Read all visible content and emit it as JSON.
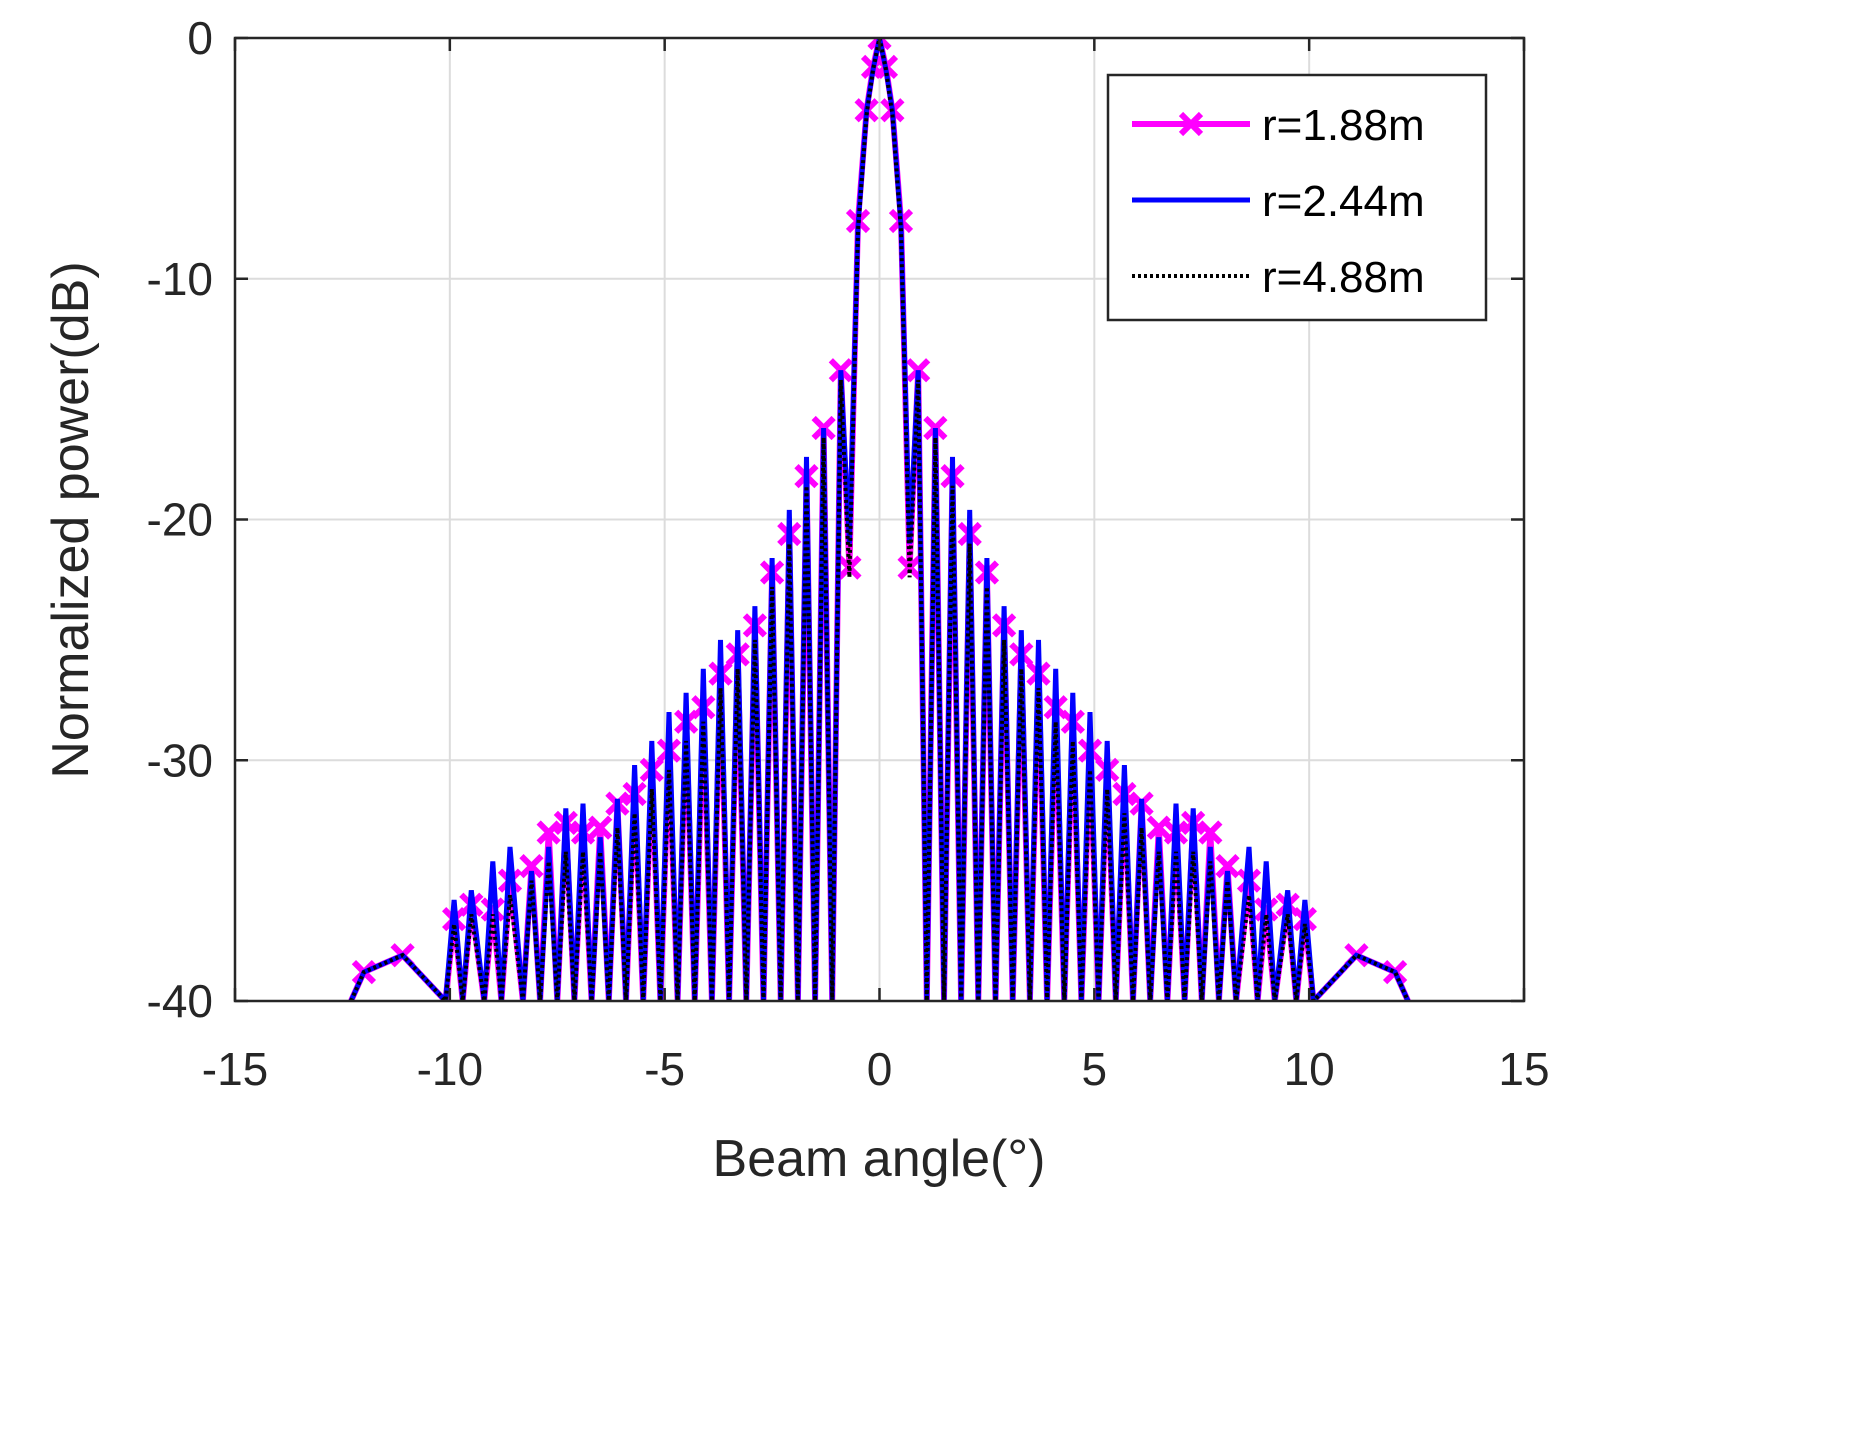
{
  "chart_data": {
    "type": "line",
    "title": "",
    "xlabel": "Beam angle(°)",
    "ylabel": "Normalized power(dB)",
    "xlim": [
      -15,
      15
    ],
    "ylim": [
      -40,
      0
    ],
    "xticks": [
      -15,
      -10,
      -5,
      0,
      5,
      10,
      15
    ],
    "yticks": [
      0,
      -10,
      -20,
      -30,
      -40
    ],
    "xtick_labels": [
      "-15",
      "-10",
      "-5",
      "0",
      "5",
      "10",
      "15"
    ],
    "ytick_labels": [
      "0",
      "-10",
      "-20",
      "-30",
      "-40"
    ],
    "grid": true,
    "legend_position": "top-right",
    "series": [
      {
        "name": "r=1.88m",
        "color": "#ff00ff",
        "line_style": "solid",
        "marker": "x",
        "x": [
          -12.3,
          -12.0,
          -11.1,
          -10.1,
          -9.9,
          -9.7,
          -9.5,
          -9.2,
          -9.0,
          -8.8,
          -8.6,
          -8.3,
          -8.1,
          -7.9,
          -7.7,
          -7.5,
          -7.3,
          -7.1,
          -6.9,
          -6.7,
          -6.5,
          -6.3,
          -6.1,
          -5.9,
          -5.7,
          -5.5,
          -5.3,
          -5.1,
          -4.9,
          -4.7,
          -4.5,
          -4.3,
          -4.1,
          -3.9,
          -3.7,
          -3.5,
          -3.3,
          -3.1,
          -2.9,
          -2.7,
          -2.5,
          -2.3,
          -2.1,
          -1.9,
          -1.7,
          -1.5,
          -1.3,
          -1.1,
          -0.9,
          -0.7,
          -0.5,
          -0.3,
          -0.15,
          0.0,
          0.15,
          0.3,
          0.5,
          0.7,
          0.9,
          1.1,
          1.3,
          1.5,
          1.7,
          1.9,
          2.1,
          2.3,
          2.5,
          2.7,
          2.9,
          3.1,
          3.3,
          3.5,
          3.7,
          3.9,
          4.1,
          4.3,
          4.5,
          4.7,
          4.9,
          5.1,
          5.3,
          5.5,
          5.7,
          5.9,
          6.1,
          6.3,
          6.5,
          6.7,
          6.9,
          7.1,
          7.3,
          7.5,
          7.7,
          7.9,
          8.1,
          8.3,
          8.6,
          8.8,
          9.0,
          9.2,
          9.5,
          9.7,
          9.9,
          10.1,
          11.1,
          12.0,
          12.3
        ],
        "y": [
          -40,
          -38.8,
          -38.1,
          -40,
          -36.6,
          -40,
          -36.0,
          -40,
          -36.2,
          -40,
          -35.0,
          -40,
          -34.4,
          -40,
          -33.0,
          -40,
          -32.6,
          -40,
          -33.0,
          -40,
          -32.8,
          -40,
          -31.8,
          -40,
          -31.4,
          -40,
          -30.4,
          -40,
          -29.6,
          -40,
          -28.4,
          -40,
          -27.8,
          -40,
          -26.4,
          -40,
          -25.6,
          -40,
          -24.4,
          -40,
          -22.2,
          -40,
          -20.6,
          -40,
          -18.2,
          -40,
          -16.2,
          -40,
          -13.8,
          -22.0,
          -7.6,
          -3.0,
          -1.2,
          0,
          -1.2,
          -3.0,
          -7.6,
          -22.0,
          -13.8,
          -40,
          -16.2,
          -40,
          -18.2,
          -40,
          -20.6,
          -40,
          -22.2,
          -40,
          -24.4,
          -40,
          -25.6,
          -40,
          -26.4,
          -40,
          -27.8,
          -40,
          -28.4,
          -40,
          -29.6,
          -40,
          -30.4,
          -40,
          -31.4,
          -40,
          -31.8,
          -40,
          -32.8,
          -40,
          -33.0,
          -40,
          -32.6,
          -40,
          -33.0,
          -40,
          -34.4,
          -40,
          -35.0,
          -40,
          -36.2,
          -40,
          -36.0,
          -40,
          -36.6,
          -40,
          -38.1,
          -38.8,
          -40
        ]
      },
      {
        "name": "r=2.44m",
        "color": "#0000ff",
        "line_style": "solid",
        "marker": "none",
        "x": [
          -12.3,
          -12.0,
          -11.1,
          -10.1,
          -9.9,
          -9.7,
          -9.5,
          -9.2,
          -9.0,
          -8.8,
          -8.6,
          -8.3,
          -8.1,
          -7.9,
          -7.7,
          -7.5,
          -7.3,
          -7.1,
          -6.9,
          -6.7,
          -6.5,
          -6.3,
          -6.1,
          -5.9,
          -5.7,
          -5.5,
          -5.3,
          -5.1,
          -4.9,
          -4.7,
          -4.5,
          -4.3,
          -4.1,
          -3.9,
          -3.7,
          -3.5,
          -3.3,
          -3.1,
          -2.9,
          -2.7,
          -2.5,
          -2.3,
          -2.1,
          -1.9,
          -1.7,
          -1.5,
          -1.3,
          -1.1,
          -0.9,
          -0.7,
          -0.5,
          -0.3,
          -0.15,
          0.0,
          0.15,
          0.3,
          0.5,
          0.7,
          0.9,
          1.1,
          1.3,
          1.5,
          1.7,
          1.9,
          2.1,
          2.3,
          2.5,
          2.7,
          2.9,
          3.1,
          3.3,
          3.5,
          3.7,
          3.9,
          4.1,
          4.3,
          4.5,
          4.7,
          4.9,
          5.1,
          5.3,
          5.5,
          5.7,
          5.9,
          6.1,
          6.3,
          6.5,
          6.7,
          6.9,
          7.1,
          7.3,
          7.5,
          7.7,
          7.9,
          8.1,
          8.3,
          8.6,
          8.8,
          9.0,
          9.2,
          9.5,
          9.7,
          9.9,
          10.1,
          11.1,
          12.0,
          12.3
        ],
        "y": [
          -40,
          -38.8,
          -38.1,
          -40,
          -35.8,
          -40,
          -35.4,
          -40,
          -34.2,
          -40,
          -33.6,
          -40,
          -34.6,
          -40,
          -33.6,
          -40,
          -32.0,
          -40,
          -31.8,
          -40,
          -33.2,
          -40,
          -31.6,
          -40,
          -30.2,
          -40,
          -29.2,
          -40,
          -28.0,
          -40,
          -27.2,
          -40,
          -26.2,
          -40,
          -25.0,
          -40,
          -24.6,
          -40,
          -23.6,
          -40,
          -21.6,
          -40,
          -19.6,
          -40,
          -17.4,
          -40,
          -16.2,
          -40,
          -13.8,
          -21.0,
          -7.8,
          -3.0,
          -1.3,
          0,
          -1.3,
          -3.0,
          -7.8,
          -21.0,
          -13.8,
          -40,
          -16.2,
          -40,
          -17.4,
          -40,
          -19.6,
          -40,
          -21.6,
          -40,
          -23.6,
          -40,
          -24.6,
          -40,
          -25.0,
          -40,
          -26.2,
          -40,
          -27.2,
          -40,
          -28.0,
          -40,
          -29.2,
          -40,
          -30.2,
          -40,
          -31.6,
          -40,
          -33.2,
          -40,
          -31.8,
          -40,
          -32.0,
          -40,
          -33.6,
          -40,
          -34.6,
          -40,
          -33.6,
          -40,
          -34.2,
          -40,
          -35.4,
          -40,
          -35.8,
          -40,
          -38.1,
          -38.8,
          -40
        ]
      },
      {
        "name": "r=4.88m",
        "color": "#000000",
        "line_style": "dotted",
        "marker": "none",
        "x": [
          -12.3,
          -12.0,
          -11.1,
          -10.1,
          -9.9,
          -9.7,
          -9.5,
          -9.2,
          -9.0,
          -8.8,
          -8.6,
          -8.3,
          -8.1,
          -7.9,
          -7.7,
          -7.5,
          -7.3,
          -7.1,
          -6.9,
          -6.7,
          -6.5,
          -6.3,
          -6.1,
          -5.9,
          -5.7,
          -5.5,
          -5.3,
          -5.1,
          -4.9,
          -4.7,
          -4.5,
          -4.3,
          -4.1,
          -3.9,
          -3.7,
          -3.5,
          -3.3,
          -3.1,
          -2.9,
          -2.7,
          -2.5,
          -2.3,
          -2.1,
          -1.9,
          -1.7,
          -1.5,
          -1.3,
          -1.1,
          -0.9,
          -0.7,
          -0.5,
          -0.3,
          -0.15,
          0.0,
          0.15,
          0.3,
          0.5,
          0.7,
          0.9,
          1.1,
          1.3,
          1.5,
          1.7,
          1.9,
          2.1,
          2.3,
          2.5,
          2.7,
          2.9,
          3.1,
          3.3,
          3.5,
          3.7,
          3.9,
          4.1,
          4.3,
          4.5,
          4.7,
          4.9,
          5.1,
          5.3,
          5.5,
          5.7,
          5.9,
          6.1,
          6.3,
          6.5,
          6.7,
          6.9,
          7.1,
          7.3,
          7.5,
          7.7,
          7.9,
          8.1,
          8.3,
          8.6,
          8.8,
          9.0,
          9.2,
          9.5,
          9.7,
          9.9,
          10.1,
          11.1,
          12.0,
          12.3
        ],
        "y": [
          -40,
          -38.8,
          -38.1,
          -40,
          -36.8,
          -40,
          -36.4,
          -40,
          -36.4,
          -40,
          -35.6,
          -40,
          -35.0,
          -40,
          -34.2,
          -40,
          -33.8,
          -40,
          -33.8,
          -40,
          -33.8,
          -40,
          -32.8,
          -40,
          -32.2,
          -40,
          -31.2,
          -40,
          -30.4,
          -40,
          -29.2,
          -40,
          -28.4,
          -40,
          -27.0,
          -40,
          -26.2,
          -40,
          -25.0,
          -40,
          -22.8,
          -40,
          -21.0,
          -40,
          -18.6,
          -40,
          -16.6,
          -40,
          -14.2,
          -22.4,
          -8.0,
          -3.2,
          -1.3,
          0,
          -1.3,
          -3.2,
          -8.0,
          -22.4,
          -14.2,
          -40,
          -16.6,
          -40,
          -18.6,
          -40,
          -21.0,
          -40,
          -22.8,
          -40,
          -25.0,
          -40,
          -26.2,
          -40,
          -27.0,
          -40,
          -28.4,
          -40,
          -29.2,
          -40,
          -30.4,
          -40,
          -31.2,
          -40,
          -32.2,
          -40,
          -32.8,
          -40,
          -33.8,
          -40,
          -33.8,
          -40,
          -33.8,
          -40,
          -34.2,
          -40,
          -35.0,
          -40,
          -35.6,
          -40,
          -36.4,
          -40,
          -36.4,
          -40,
          -36.8,
          -40,
          -38.1,
          -38.8,
          -40
        ]
      }
    ]
  }
}
